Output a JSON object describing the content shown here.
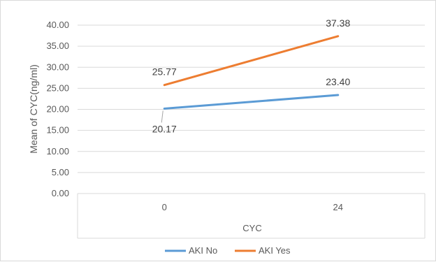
{
  "chart_data": {
    "type": "line",
    "title": "",
    "xlabel": "CYC",
    "ylabel": "Mean of CYC(ng/ml)",
    "categories": [
      "0",
      "24"
    ],
    "ylim": [
      0,
      40
    ],
    "yticks": [
      "0.00",
      "5.00",
      "10.00",
      "15.00",
      "20.00",
      "25.00",
      "30.00",
      "35.00",
      "40.00"
    ],
    "grid": true,
    "legend": "bottom",
    "series": [
      {
        "name": "AKI No",
        "values": [
          20.17,
          23.4
        ],
        "labels": [
          "20.17",
          "23.40"
        ],
        "color": "#5b9bd5"
      },
      {
        "name": "AKI Yes",
        "values": [
          25.77,
          37.38
        ],
        "labels": [
          "25.77",
          "37.38"
        ],
        "color": "#ed7d31"
      }
    ]
  }
}
